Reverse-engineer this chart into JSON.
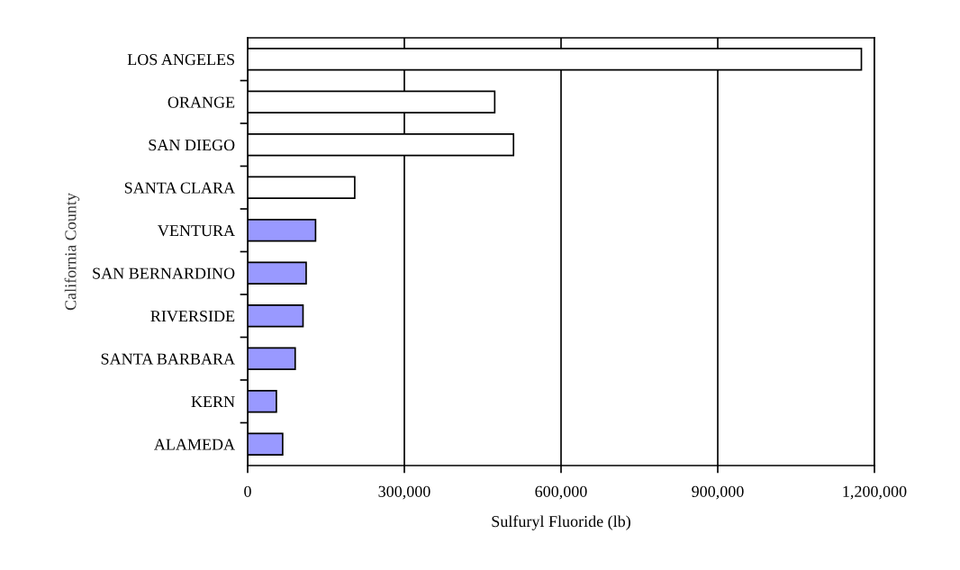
{
  "chart_data": {
    "type": "bar",
    "orientation": "horizontal",
    "xlabel": "Sulfuryl Fluoride (lb)",
    "ylabel": "California County",
    "categories": [
      "LOS ANGELES",
      "ORANGE",
      "SAN DIEGO",
      "SANTA CLARA",
      "VENTURA",
      "SAN BERNARDINO",
      "RIVERSIDE",
      "SANTA BARBARA",
      "KERN",
      "ALAMEDA"
    ],
    "values": [
      1175000,
      473000,
      509000,
      205000,
      130000,
      112000,
      106000,
      91000,
      55000,
      67000
    ],
    "colors": [
      "#ffffff",
      "#ffffff",
      "#ffffff",
      "#ffffff",
      "#9999ff",
      "#9999ff",
      "#9999ff",
      "#9999ff",
      "#9999ff",
      "#9999ff"
    ],
    "xlim": [
      0,
      1200000
    ],
    "xticks": [
      0,
      {
        "value": 300000,
        "label": "300,000"
      },
      {
        "value": 600000,
        "label": "600,000"
      },
      {
        "value": 900000,
        "label": "900,000"
      },
      {
        "value": 1200000,
        "label": "1,200,000"
      }
    ],
    "grid": "x",
    "legend": false
  }
}
